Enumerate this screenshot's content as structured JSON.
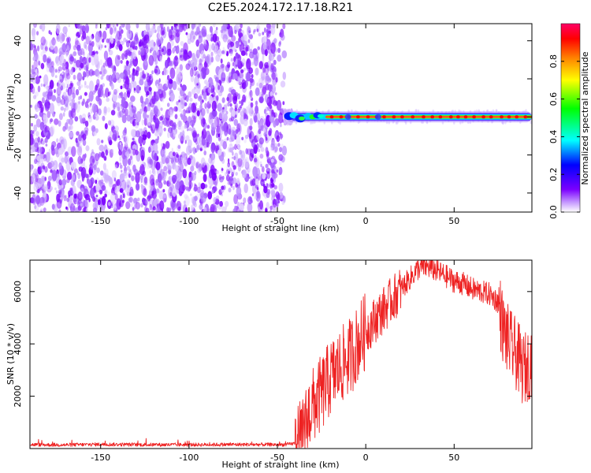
{
  "figure": {
    "title": "C2E5.2024.172.17.18.R21"
  },
  "chart_data": [
    {
      "type": "heatmap",
      "xlabel": "Height of straight line (km)",
      "ylabel": "Frequency (Hz)",
      "xlim": [
        -190,
        94
      ],
      "ylim": [
        -50,
        49
      ],
      "xticks": [
        -150,
        -100,
        -50,
        0,
        50
      ],
      "yticks": [
        -40,
        -20,
        0,
        20,
        40
      ],
      "noise_region_x": [
        -190,
        -46
      ],
      "signal_region_x": [
        -46,
        94
      ],
      "signal_frequency_hz": 0,
      "colorbar": {
        "label": "Normalized spectral amplitude",
        "range": [
          0.0,
          1.0
        ],
        "ticks": [
          0.0,
          0.2,
          0.4,
          0.6,
          0.8
        ],
        "colormap": [
          "#ffffff",
          "#7b00ff",
          "#0000ff",
          "#00ffff",
          "#00ff00",
          "#ffff00",
          "#ff7f00",
          "#ff0040"
        ]
      },
      "grid": false
    },
    {
      "type": "line",
      "xlabel": "Height of straight line (km)",
      "ylabel": "SNR (10 * v/v)",
      "xlim": [
        -190,
        94
      ],
      "ylim": [
        0,
        7200
      ],
      "xticks": [
        -150,
        -100,
        -50,
        0,
        50
      ],
      "yticks": [
        2000,
        4000,
        6000
      ],
      "color": "#ee2222",
      "grid": false,
      "series": [
        {
          "x": [
            -190,
            -170,
            -150,
            -130,
            -110,
            -90,
            -70,
            -50,
            -45,
            -40,
            -36,
            -32,
            -28,
            -24,
            -20,
            -16,
            -12,
            -8,
            -4,
            0,
            5,
            10,
            15,
            20,
            25,
            30,
            35,
            40,
            45,
            50,
            55,
            60,
            65,
            70,
            75,
            78,
            80,
            83,
            86,
            89,
            92,
            94
          ],
          "y": [
            150,
            140,
            160,
            150,
            145,
            150,
            155,
            150,
            150,
            200,
            400,
            1400,
            1800,
            2200,
            2700,
            3000,
            3300,
            3600,
            4100,
            4500,
            4900,
            5300,
            5700,
            6100,
            6500,
            6900,
            6950,
            6800,
            6600,
            6400,
            6300,
            6100,
            6000,
            5900,
            5600,
            4500,
            4200,
            3800,
            3500,
            3000,
            3200,
            3400
          ]
        }
      ]
    }
  ]
}
